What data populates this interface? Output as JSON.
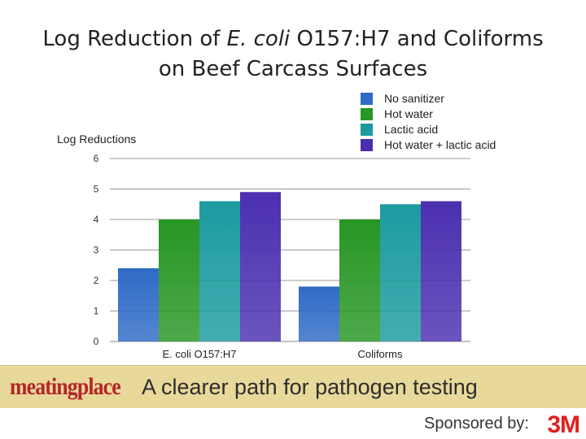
{
  "title": {
    "line1_pre": "Log Reduction of ",
    "line1_italic": "E. coli",
    "line1_post": " O157:H7 and Coliforms",
    "line2": "on Beef Carcass Surfaces"
  },
  "chart_data": {
    "type": "bar",
    "ylabel": "Log Reductions",
    "ylim": [
      0,
      6
    ],
    "yticks": [
      0,
      1,
      2,
      3,
      4,
      5,
      6
    ],
    "categories": [
      "E. coli O157:H7",
      "Coliforms"
    ],
    "series": [
      {
        "name": "No sanitizer",
        "color": "#2f6bc6",
        "values": [
          2.4,
          1.8
        ]
      },
      {
        "name": "Hot water",
        "color": "#279624",
        "values": [
          4.0,
          4.0
        ]
      },
      {
        "name": "Lactic acid",
        "color": "#1b9ba0",
        "values": [
          4.6,
          4.5
        ]
      },
      {
        "name": "Hot water + lactic acid",
        "color": "#4b2fb0",
        "values": [
          4.9,
          4.6
        ]
      }
    ],
    "grid": true,
    "legend_position": "top-right"
  },
  "banner": {
    "brand": "meatingplace",
    "tagline": "A clearer path for pathogen testing",
    "sponsor": "Sponsored by:",
    "logo": "3M",
    "colors": {
      "background": "#e8d89a",
      "brand": "#b3262a",
      "logo": "#e02020"
    }
  }
}
